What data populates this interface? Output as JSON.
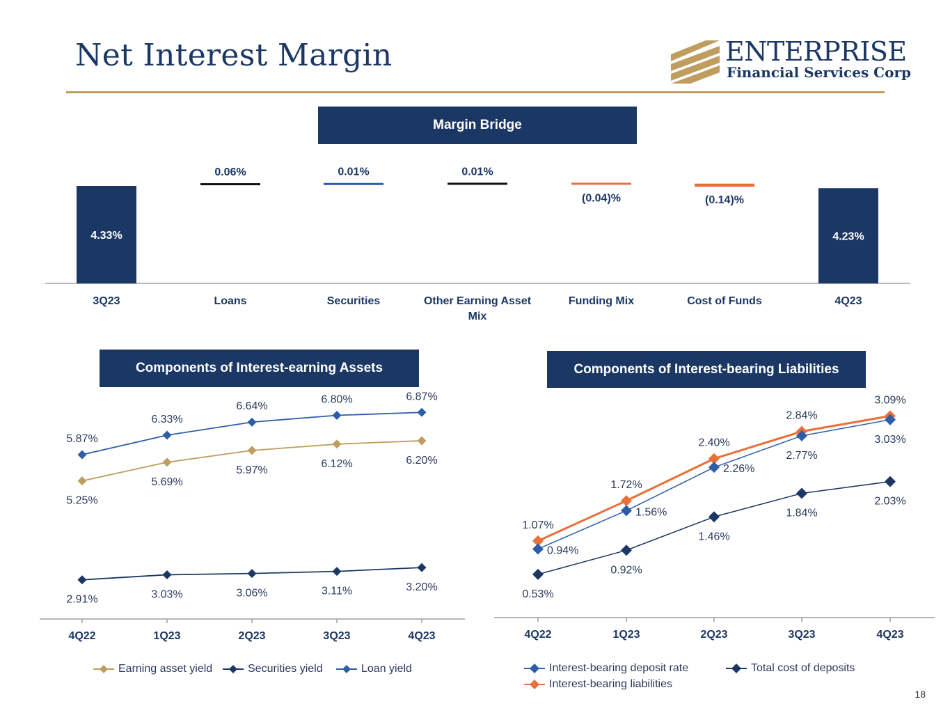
{
  "title": "Net Interest Margin",
  "logo": {
    "name": "ENTERPRISE",
    "subtitle": "Financial Services Corp"
  },
  "page_number": "18",
  "colors": {
    "navy": "#1b3764",
    "gold": "#bf9d5e",
    "orange": "#e8703a",
    "blue": "#2e5da8",
    "dark": "#1b3764"
  },
  "chart_data": [
    {
      "id": "margin-bridge",
      "type": "bar",
      "title": "Margin Bridge",
      "categories": [
        "3Q23",
        "Loans",
        "Securities",
        "Other Earning Asset Mix",
        "Funding Mix",
        "Cost of Funds",
        "4Q23"
      ],
      "category_labels": [
        [
          "3Q23"
        ],
        [
          "Loans"
        ],
        [
          "Securities"
        ],
        [
          "Other Earning Asset",
          "Mix"
        ],
        [
          "Funding Mix"
        ],
        [
          "Cost of Funds"
        ],
        [
          "4Q23"
        ]
      ],
      "values": [
        4.33,
        0.06,
        0.01,
        0.01,
        -0.04,
        -0.14,
        4.23
      ],
      "kinds": [
        "total",
        "delta",
        "delta",
        "delta",
        "delta",
        "delta",
        "total"
      ],
      "labels": [
        "4.33%",
        "0.06%",
        "0.01%",
        "0.01%",
        "(0.04)%",
        "(0.14)%",
        "4.23%"
      ]
    },
    {
      "id": "interest-earning-assets",
      "type": "line",
      "title": "Components of Interest-earning Assets",
      "categories": [
        "4Q22",
        "1Q23",
        "2Q23",
        "3Q23",
        "4Q23"
      ],
      "ylim": [
        2.0,
        7.5
      ],
      "series": [
        {
          "name": "Loan yield",
          "color": "#2e5da8",
          "values": [
            5.87,
            6.33,
            6.64,
            6.8,
            6.87
          ],
          "labels": [
            "5.87%",
            "6.33%",
            "6.64%",
            "6.80%",
            "6.87%"
          ],
          "label_pos": "above"
        },
        {
          "name": "Earning asset yield",
          "color": "#bf9d5e",
          "values": [
            5.25,
            5.69,
            5.97,
            6.12,
            6.2
          ],
          "labels": [
            "5.25%",
            "5.69%",
            "5.97%",
            "6.12%",
            "6.20%"
          ],
          "label_pos": "below"
        },
        {
          "name": "Securities yield",
          "color": "#1b3764",
          "values": [
            2.91,
            3.03,
            3.06,
            3.11,
            3.2
          ],
          "labels": [
            "2.91%",
            "3.03%",
            "3.06%",
            "3.11%",
            "3.20%"
          ],
          "label_pos": "below"
        }
      ],
      "legend": [
        "Earning asset yield",
        "Securities yield",
        "Loan yield"
      ]
    },
    {
      "id": "interest-bearing-liabilities",
      "type": "line",
      "title": "Components of Interest-bearing Liabilities",
      "categories": [
        "4Q22",
        "1Q23",
        "2Q23",
        "3Q23",
        "4Q23"
      ],
      "ylim": [
        0.0,
        3.5
      ],
      "series": [
        {
          "name": "Interest-bearing liabilities",
          "color": "#e8703a",
          "values": [
            1.07,
            1.72,
            2.4,
            2.84,
            3.09
          ],
          "labels": [
            "1.07%",
            "1.72%",
            "2.40%",
            "2.84%",
            "3.09%"
          ],
          "label_pos": "above"
        },
        {
          "name": "Interest-bearing deposit rate",
          "color": "#2e5da8",
          "values": [
            0.94,
            1.56,
            2.26,
            2.77,
            3.03
          ],
          "labels": [
            "0.94%",
            "1.56%",
            "2.26%",
            "2.77%",
            "3.03%"
          ],
          "label_pos": "right-below"
        },
        {
          "name": "Total cost of deposits",
          "color": "#1b3764",
          "values": [
            0.53,
            0.92,
            1.46,
            1.84,
            2.03
          ],
          "labels": [
            "0.53%",
            "0.92%",
            "1.46%",
            "1.84%",
            "2.03%"
          ],
          "label_pos": "below"
        }
      ],
      "legend": [
        "Interest-bearing deposit rate",
        "Total cost of deposits",
        "Interest-bearing liabilities"
      ]
    }
  ]
}
